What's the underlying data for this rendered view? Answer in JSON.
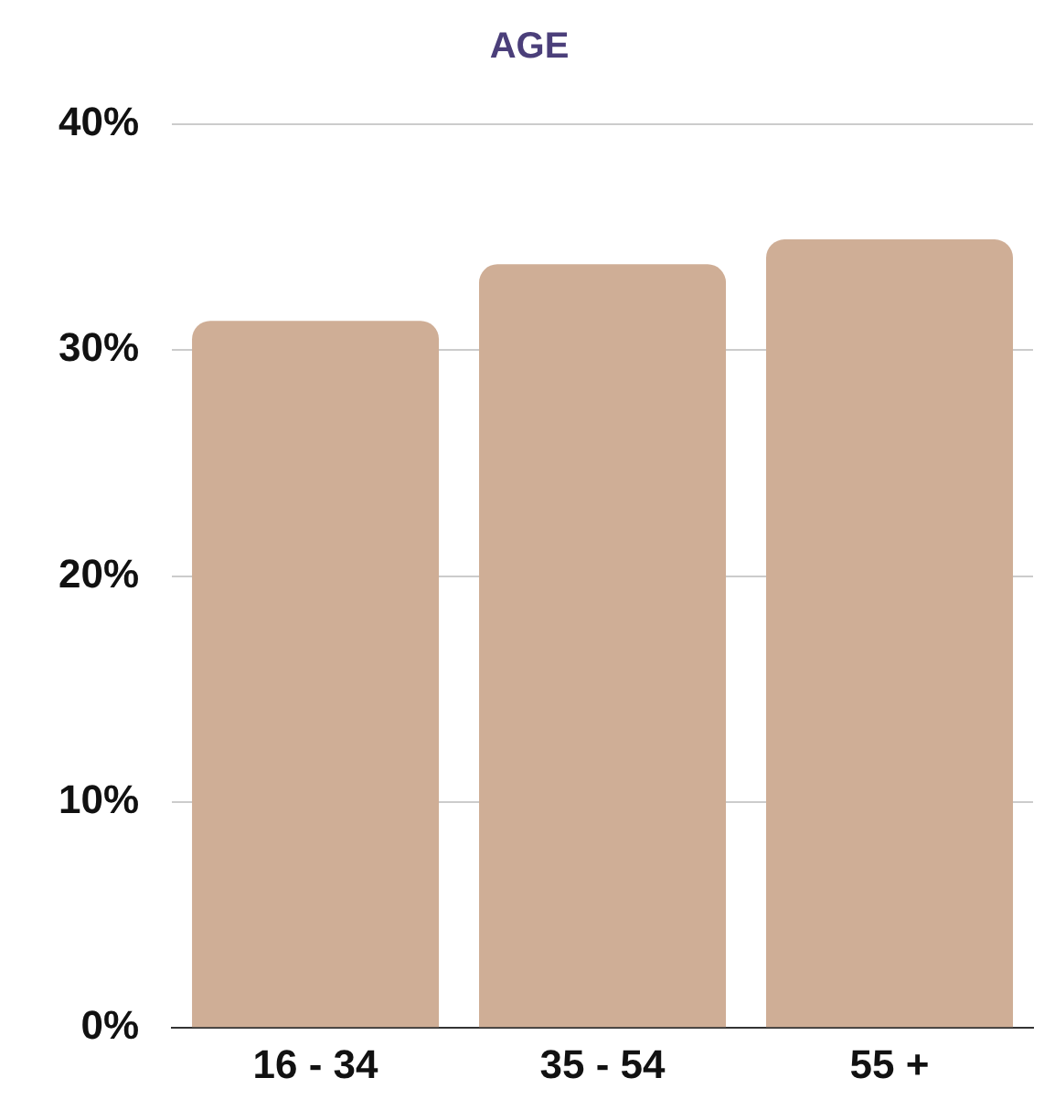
{
  "chart_data": {
    "type": "bar",
    "title": "AGE",
    "categories": [
      "16 - 34",
      "35 - 54",
      "55 +"
    ],
    "values": [
      31.3,
      33.8,
      34.9
    ],
    "color": "#cfae96",
    "ylim": [
      0,
      40
    ],
    "yticks": [
      {
        "value": 0,
        "label": "0%"
      },
      {
        "value": 10,
        "label": "10%"
      },
      {
        "value": 20,
        "label": "20%"
      },
      {
        "value": 30,
        "label": "30%"
      },
      {
        "value": 40,
        "label": "40%"
      }
    ],
    "grid": "y",
    "legend": false
  }
}
